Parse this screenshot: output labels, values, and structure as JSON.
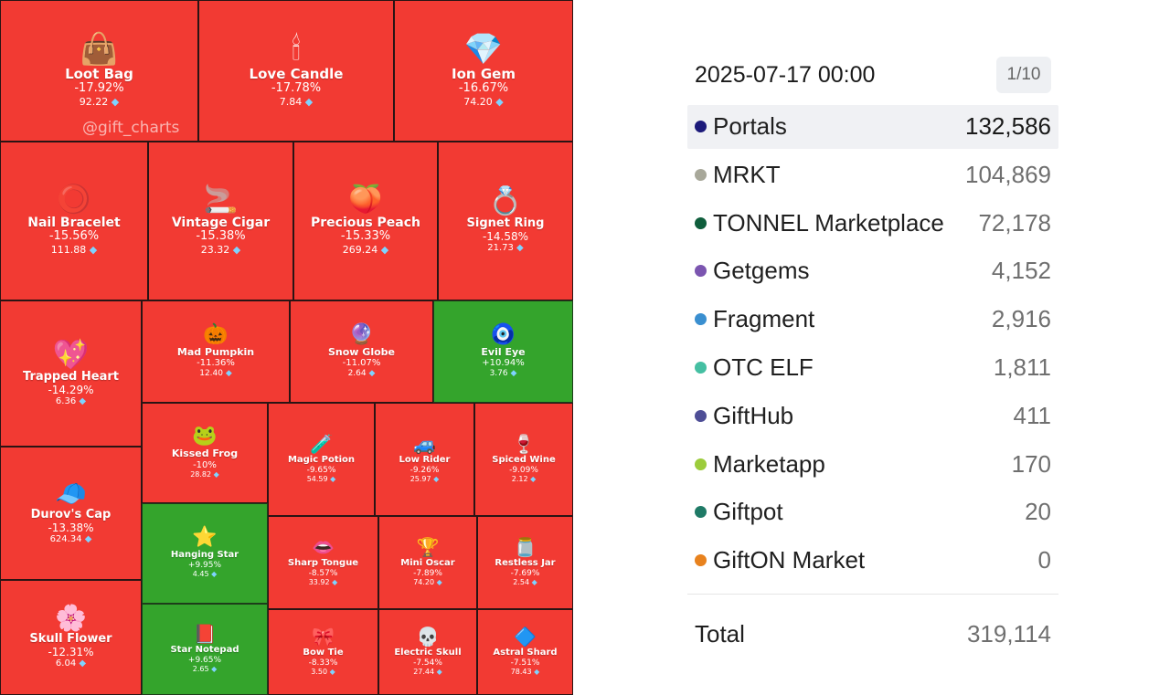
{
  "treemap": {
    "watermark": "@gift_charts",
    "currency_icon": "diamond-icon",
    "colors": {
      "negative": "#f23a33",
      "positive": "#34a42c"
    },
    "tiles": [
      {
        "name": "Loot Bag",
        "change": "-17.92%",
        "price": "92.22",
        "icon": "bag-icon",
        "glyph": "👜",
        "trend": "down"
      },
      {
        "name": "Love Candle",
        "change": "-17.78%",
        "price": "7.84",
        "icon": "candle-icon",
        "glyph": "🕯",
        "trend": "down"
      },
      {
        "name": "Ion Gem",
        "change": "-16.67%",
        "price": "74.20",
        "icon": "gem-icon",
        "glyph": "💎",
        "trend": "down"
      },
      {
        "name": "Nail Bracelet",
        "change": "-15.56%",
        "price": "111.88",
        "icon": "bracelet-icon",
        "glyph": "⭕",
        "trend": "down"
      },
      {
        "name": "Vintage Cigar",
        "change": "-15.38%",
        "price": "23.32",
        "icon": "cigar-icon",
        "glyph": "🚬",
        "trend": "down"
      },
      {
        "name": "Precious Peach",
        "change": "-15.33%",
        "price": "269.24",
        "icon": "peach-icon",
        "glyph": "🍑",
        "trend": "down"
      },
      {
        "name": "Signet Ring",
        "change": "-14.58%",
        "price": "21.73",
        "icon": "ring-icon",
        "glyph": "💍",
        "trend": "down"
      },
      {
        "name": "Trapped Heart",
        "change": "-14.29%",
        "price": "6.36",
        "icon": "heart-icon",
        "glyph": "💖",
        "trend": "down"
      },
      {
        "name": "Mad Pumpkin",
        "change": "-11.36%",
        "price": "12.40",
        "icon": "pumpkin-icon",
        "glyph": "🎃",
        "trend": "down"
      },
      {
        "name": "Snow Globe",
        "change": "-11.07%",
        "price": "2.64",
        "icon": "snow-globe-icon",
        "glyph": "🔮",
        "trend": "down"
      },
      {
        "name": "Evil Eye",
        "change": "+10.94%",
        "price": "3.76",
        "icon": "eye-icon",
        "glyph": "🧿",
        "trend": "up"
      },
      {
        "name": "Kissed Frog",
        "change": "-10%",
        "price": "28.82",
        "icon": "frog-icon",
        "glyph": "🐸",
        "trend": "down"
      },
      {
        "name": "Magic Potion",
        "change": "-9.65%",
        "price": "54.59",
        "icon": "potion-icon",
        "glyph": "🧪",
        "trend": "down"
      },
      {
        "name": "Low Rider",
        "change": "-9.26%",
        "price": "25.97",
        "icon": "car-icon",
        "glyph": "🚙",
        "trend": "down"
      },
      {
        "name": "Spiced Wine",
        "change": "-9.09%",
        "price": "2.12",
        "icon": "wine-icon",
        "glyph": "🍷",
        "trend": "down"
      },
      {
        "name": "Durov's Cap",
        "change": "-13.38%",
        "price": "624.34",
        "icon": "cap-icon",
        "glyph": "🧢",
        "trend": "down"
      },
      {
        "name": "Hanging Star",
        "change": "+9.95%",
        "price": "4.45",
        "icon": "star-icon",
        "glyph": "⭐",
        "trend": "up"
      },
      {
        "name": "Sharp Tongue",
        "change": "-8.57%",
        "price": "33.92",
        "icon": "lips-icon",
        "glyph": "👄",
        "trend": "down"
      },
      {
        "name": "Mini Oscar",
        "change": "-7.89%",
        "price": "74.20",
        "icon": "trophy-icon",
        "glyph": "🏆",
        "trend": "down"
      },
      {
        "name": "Restless Jar",
        "change": "-7.69%",
        "price": "2.54",
        "icon": "jar-icon",
        "glyph": "🫙",
        "trend": "down"
      },
      {
        "name": "Skull Flower",
        "change": "-12.31%",
        "price": "6.04",
        "icon": "flower-icon",
        "glyph": "🌸",
        "trend": "down"
      },
      {
        "name": "Star Notepad",
        "change": "+9.65%",
        "price": "2.65",
        "icon": "notepad-icon",
        "glyph": "📕",
        "trend": "up"
      },
      {
        "name": "Bow Tie",
        "change": "-8.33%",
        "price": "3.50",
        "icon": "bow-tie-icon",
        "glyph": "🎀",
        "trend": "down"
      },
      {
        "name": "Electric Skull",
        "change": "-7.54%",
        "price": "27.44",
        "icon": "skull-icon",
        "glyph": "💀",
        "trend": "down"
      },
      {
        "name": "Astral Shard",
        "change": "-7.51%",
        "price": "78.43",
        "icon": "shard-icon",
        "glyph": "🔷",
        "trend": "down"
      }
    ]
  },
  "panel": {
    "datetime": "2025-07-17 00:00",
    "page_indicator": "1/10",
    "markets": [
      {
        "name": "Portals",
        "value": "132,586",
        "color": "#1c1a7a",
        "highlighted": true
      },
      {
        "name": "MRKT",
        "value": "104,869",
        "color": "#a8a89a"
      },
      {
        "name": "TONNEL Marketplace",
        "value": "72,178",
        "color": "#0f5e3c"
      },
      {
        "name": "Getgems",
        "value": "4,152",
        "color": "#7b55b0"
      },
      {
        "name": "Fragment",
        "value": "2,916",
        "color": "#3a8fd0"
      },
      {
        "name": "OTC ELF",
        "value": "1,811",
        "color": "#45bfa2"
      },
      {
        "name": "GiftHub",
        "value": "411",
        "color": "#4e4e96"
      },
      {
        "name": "Marketapp",
        "value": "170",
        "color": "#9ccc3c"
      },
      {
        "name": "Giftpot",
        "value": "20",
        "color": "#1f7a66"
      },
      {
        "name": "GiftON Market",
        "value": "0",
        "color": "#e8821e"
      }
    ],
    "total_label": "Total",
    "total_value": "319,114"
  }
}
